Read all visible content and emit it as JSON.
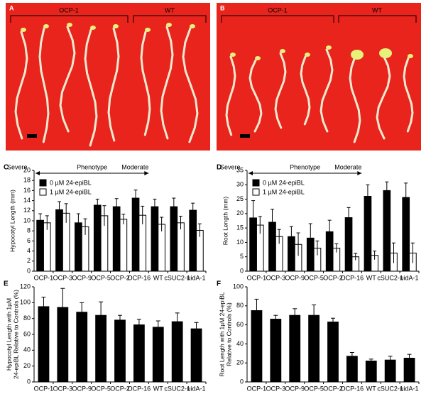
{
  "photos": [
    {
      "label": "A",
      "groups": [
        "OCP-1",
        "WT"
      ]
    },
    {
      "label": "B",
      "groups": [
        "OCP-1",
        "WT"
      ]
    }
  ],
  "chart_data": [
    {
      "type": "bar",
      "label": "C",
      "ylabel": [
        "Hypocotyl Length (mm)"
      ],
      "annotations": [
        "Severe",
        "Phenotype",
        "Moderate"
      ],
      "categories": [
        "OCP-1",
        "OCP-3",
        "OCP-9",
        "OCP-5",
        "OCP-2",
        "OCP-16",
        "WT",
        "cSUC2-1",
        "uidA-1"
      ],
      "series": [
        {
          "name": "0 µM 24-epiBL",
          "color": "#000000",
          "values": [
            10.1,
            12.2,
            9.6,
            13.1,
            12.8,
            14.5,
            12.8,
            12.8,
            12.1
          ],
          "errors": [
            1.3,
            1.6,
            1.8,
            1.2,
            1.6,
            1.6,
            1.5,
            1.7,
            1.4
          ]
        },
        {
          "name": "1 µM 24-epiBL",
          "color": "#ffffff",
          "values": [
            9.6,
            11.5,
            8.8,
            11.0,
            10.3,
            11.1,
            9.3,
            9.6,
            8.1
          ],
          "errors": [
            1.4,
            1.9,
            1.6,
            2.0,
            1.0,
            1.8,
            1.4,
            1.3,
            1.3
          ]
        }
      ],
      "ylim": [
        0,
        20
      ],
      "yticks": [
        0,
        2,
        4,
        6,
        8,
        10,
        12,
        14,
        16,
        18,
        20
      ]
    },
    {
      "type": "bar",
      "label": "D",
      "ylabel": [
        "Root Length (mm)"
      ],
      "annotations": [
        "Severe",
        "Phenotype",
        "Moderate"
      ],
      "categories": [
        "OCP-1",
        "OCP-3",
        "OCP-9",
        "OCP-5",
        "OCP-2",
        "OCP-16",
        "WT",
        "cSUC2-1",
        "uidA-1"
      ],
      "series": [
        {
          "name": "0 µM 24-epiBL",
          "color": "#000000",
          "values": [
            18.5,
            17,
            12,
            11.5,
            13.7,
            18.6,
            26,
            28,
            25.6
          ],
          "errors": [
            6,
            4.5,
            3.5,
            5,
            4,
            3.5,
            4,
            3,
            5
          ]
        },
        {
          "name": "1 µM 24-epiBL",
          "color": "#ffffff",
          "values": [
            16,
            12,
            9.3,
            8,
            8,
            5,
            5.5,
            6.3,
            6.3
          ],
          "errors": [
            3,
            2.5,
            4,
            2.5,
            1.5,
            1.2,
            1.5,
            3.5,
            3.5
          ]
        }
      ],
      "ylim": [
        0,
        35
      ],
      "yticks": [
        0,
        5,
        10,
        15,
        20,
        25,
        30,
        35
      ]
    },
    {
      "type": "bar",
      "label": "E",
      "ylabel": [
        "Hypocotyl Length with 1µM",
        "24-epiBL Relative to Controls (%)"
      ],
      "categories": [
        "OCP-1",
        "OCP-3",
        "OCP-9",
        "OCP-5",
        "OCP-2",
        "OCP-16",
        "WT",
        "cSUC2-1",
        "uidA-1"
      ],
      "color": "#000000",
      "values": [
        95,
        94,
        88,
        84,
        78,
        72,
        69,
        76,
        67
      ],
      "errors": [
        12,
        24,
        12,
        17,
        6,
        7,
        8,
        11,
        8
      ],
      "ylim": [
        0,
        120
      ],
      "yticks": [
        0,
        20,
        40,
        60,
        80,
        100,
        120
      ]
    },
    {
      "type": "bar",
      "label": "F",
      "ylabel": [
        "Root Length with 1µM 24-epiBL",
        "Relative to Controls (%)"
      ],
      "categories": [
        "OCP-1",
        "OCP-3",
        "OCP-9",
        "OCP-5",
        "OCP-2",
        "OCP-16",
        "WT",
        "cSUC2-1",
        "uidA-1"
      ],
      "color": "#000000",
      "values": [
        75,
        66,
        70,
        70,
        63,
        27,
        22,
        23,
        25
      ],
      "errors": [
        12,
        4,
        7,
        11,
        4,
        4,
        2,
        4,
        4
      ],
      "ylim": [
        0,
        100
      ],
      "yticks": [
        0,
        20,
        40,
        60,
        80,
        100
      ]
    }
  ]
}
